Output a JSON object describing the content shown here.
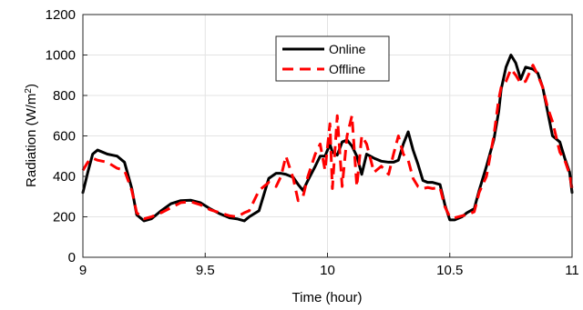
{
  "chart_data": {
    "type": "line",
    "xlabel": "Time (hour)",
    "ylabel": "Radiation (W/m",
    "ylabel_sup": "2",
    "ylabel_close": ")",
    "xlim": [
      9,
      11
    ],
    "ylim": [
      0,
      1200
    ],
    "xticks": [
      9,
      9.5,
      10,
      10.5,
      11
    ],
    "xtick_labels": [
      "9",
      "9.5",
      "10",
      "10.5",
      "11"
    ],
    "yticks": [
      0,
      200,
      400,
      600,
      800,
      1000,
      1200
    ],
    "ytick_labels": [
      "0",
      "200",
      "400",
      "600",
      "800",
      "1000",
      "1200"
    ],
    "grid": true,
    "legend_position": "top-center",
    "series": [
      {
        "name": "Online",
        "color": "#000000",
        "style": "solid",
        "x": [
          9.0,
          9.02,
          9.04,
          9.06,
          9.1,
          9.14,
          9.17,
          9.2,
          9.22,
          9.25,
          9.28,
          9.32,
          9.36,
          9.4,
          9.44,
          9.48,
          9.52,
          9.56,
          9.6,
          9.63,
          9.66,
          9.68,
          9.72,
          9.76,
          9.79,
          9.81,
          9.83,
          9.86,
          9.88,
          9.9,
          9.92,
          9.95,
          9.97,
          9.99,
          10.01,
          10.02,
          10.04,
          10.06,
          10.08,
          10.1,
          10.12,
          10.14,
          10.16,
          10.19,
          10.22,
          10.25,
          10.27,
          10.29,
          10.31,
          10.33,
          10.35,
          10.37,
          10.39,
          10.41,
          10.43,
          10.46,
          10.48,
          10.5,
          10.52,
          10.55,
          10.57,
          10.6,
          10.62,
          10.65,
          10.68,
          10.7,
          10.71,
          10.73,
          10.75,
          10.77,
          10.79,
          10.81,
          10.84,
          10.86,
          10.88,
          10.9,
          10.92,
          10.95,
          10.97,
          10.99,
          11.0
        ],
        "values": [
          320,
          420,
          510,
          530,
          510,
          500,
          470,
          340,
          210,
          180,
          190,
          230,
          265,
          280,
          282,
          270,
          240,
          215,
          195,
          190,
          180,
          200,
          230,
          390,
          415,
          415,
          410,
          395,
          360,
          330,
          380,
          450,
          500,
          500,
          560,
          520,
          505,
          570,
          580,
          550,
          500,
          410,
          510,
          490,
          475,
          470,
          470,
          480,
          560,
          620,
          530,
          460,
          380,
          370,
          370,
          360,
          260,
          185,
          185,
          200,
          220,
          240,
          330,
          450,
          580,
          720,
          830,
          940,
          1000,
          960,
          880,
          940,
          930,
          910,
          840,
          720,
          600,
          570,
          490,
          420,
          320
        ]
      },
      {
        "name": "Offline",
        "color": "#ff0000",
        "style": "dashed",
        "x": [
          9.0,
          9.02,
          9.04,
          9.06,
          9.1,
          9.14,
          9.17,
          9.2,
          9.22,
          9.25,
          9.28,
          9.32,
          9.36,
          9.4,
          9.44,
          9.48,
          9.52,
          9.56,
          9.6,
          9.63,
          9.66,
          9.68,
          9.72,
          9.76,
          9.79,
          9.81,
          9.83,
          9.86,
          9.88,
          9.9,
          9.92,
          9.95,
          9.97,
          9.99,
          10.01,
          10.02,
          10.04,
          10.06,
          10.08,
          10.1,
          10.12,
          10.14,
          10.16,
          10.19,
          10.22,
          10.25,
          10.27,
          10.29,
          10.31,
          10.33,
          10.35,
          10.37,
          10.39,
          10.41,
          10.43,
          10.46,
          10.48,
          10.5,
          10.52,
          10.55,
          10.57,
          10.6,
          10.62,
          10.65,
          10.68,
          10.7,
          10.71,
          10.73,
          10.75,
          10.77,
          10.79,
          10.81,
          10.84,
          10.86,
          10.88,
          10.9,
          10.92,
          10.95,
          10.97,
          10.99,
          11.0
        ],
        "values": [
          430,
          470,
          490,
          480,
          470,
          440,
          430,
          330,
          220,
          190,
          200,
          220,
          245,
          270,
          275,
          260,
          235,
          220,
          205,
          200,
          220,
          230,
          330,
          370,
          350,
          400,
          500,
          390,
          280,
          300,
          400,
          510,
          560,
          430,
          660,
          340,
          700,
          350,
          600,
          700,
          350,
          600,
          560,
          420,
          450,
          410,
          510,
          600,
          510,
          480,
          390,
          350,
          340,
          345,
          340,
          345,
          250,
          200,
          195,
          205,
          210,
          225,
          320,
          400,
          600,
          780,
          840,
          870,
          930,
          900,
          860,
          870,
          950,
          900,
          840,
          740,
          670,
          520,
          480,
          410,
          340
        ]
      }
    ]
  }
}
